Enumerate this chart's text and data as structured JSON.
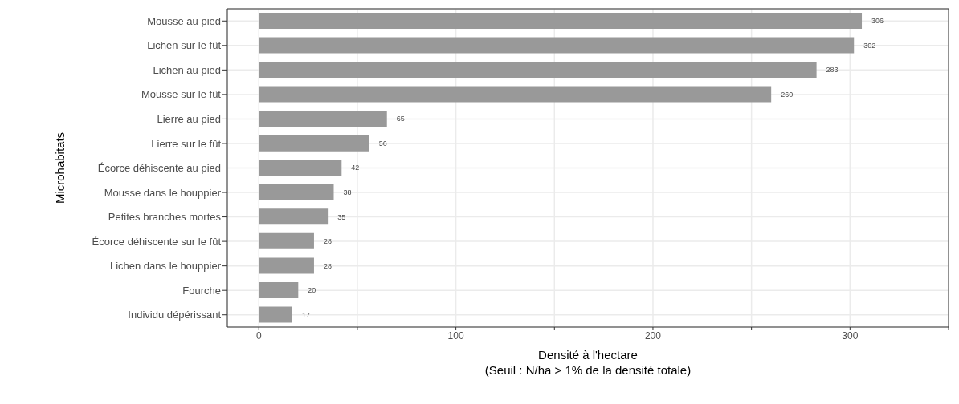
{
  "chart_data": {
    "type": "bar",
    "orientation": "horizontal",
    "xlabel": "Densité à l'hectare\n(Seuil : N/ha > 1% de la densité totale)",
    "ylabel": "Microhabitats",
    "categories": [
      "Mousse au pied",
      "Lichen sur le fût",
      "Lichen au pied",
      "Mousse sur le fût",
      "Lierre au pied",
      "Lierre sur le fût",
      "Écorce déhiscente au pied",
      "Mousse dans le houppier",
      "Petites branches mortes",
      "Écorce déhiscente sur le fût",
      "Lichen dans le houppier",
      "Fourche",
      "Individu dépérissant"
    ],
    "values": [
      306,
      302,
      283,
      260,
      65,
      56,
      42,
      38,
      35,
      28,
      28,
      20,
      17
    ],
    "color": "#999999",
    "data_labels": true,
    "xlim": [
      -16,
      350
    ],
    "xticks": [
      0,
      {
        "value": 50,
        "label": null
      },
      100,
      {
        "value": 150,
        "label": null
      },
      200,
      {
        "value": 250,
        "label": null
      },
      300,
      {
        "value": 350,
        "label": null
      }
    ],
    "grid": true
  }
}
